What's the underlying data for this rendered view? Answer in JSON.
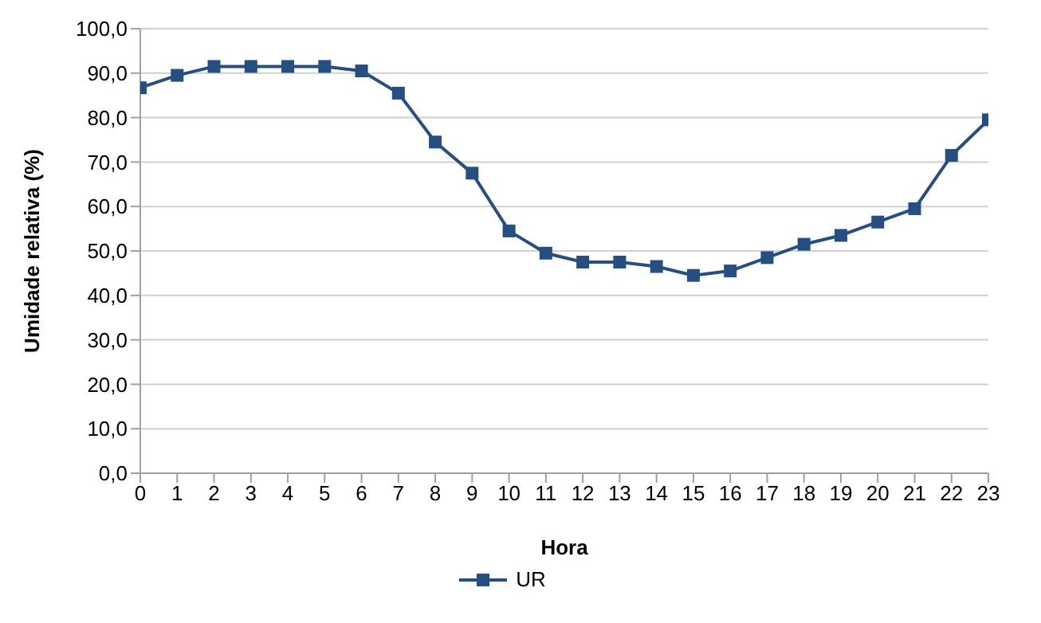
{
  "chart_data": {
    "type": "line",
    "xlabel": "Hora",
    "ylabel": "Umidade relativa (%)",
    "x": [
      0,
      1,
      2,
      3,
      4,
      5,
      6,
      7,
      8,
      9,
      10,
      11,
      12,
      13,
      14,
      15,
      16,
      17,
      18,
      19,
      20,
      21,
      22,
      23
    ],
    "series": [
      {
        "name": "UR",
        "color": "#254f80",
        "values": [
          86.7,
          89.5,
          91.5,
          91.5,
          91.5,
          91.5,
          90.5,
          85.5,
          74.5,
          67.5,
          54.5,
          49.5,
          47.5,
          47.5,
          46.5,
          44.5,
          45.5,
          48.5,
          51.5,
          53.5,
          56.5,
          59.5,
          71.5,
          79.5
        ]
      }
    ],
    "xlim": [
      0,
      23
    ],
    "xticks": [
      0,
      1,
      2,
      3,
      4,
      5,
      6,
      7,
      8,
      9,
      10,
      11,
      12,
      13,
      14,
      15,
      16,
      17,
      18,
      19,
      20,
      21,
      22,
      23
    ],
    "ylim": [
      0,
      100
    ],
    "yticks": [
      {
        "value": 0,
        "label": "0,0"
      },
      {
        "value": 10,
        "label": "10,0"
      },
      {
        "value": 20,
        "label": "20,0"
      },
      {
        "value": 30,
        "label": "30,0"
      },
      {
        "value": 40,
        "label": "40,0"
      },
      {
        "value": 50,
        "label": "50,0"
      },
      {
        "value": 60,
        "label": "60,0"
      },
      {
        "value": 70,
        "label": "70,0"
      },
      {
        "value": 80,
        "label": "80,0"
      },
      {
        "value": 90,
        "label": "90,0"
      },
      {
        "value": 100,
        "label": "100,0"
      }
    ],
    "grid": "y",
    "legend": "bottom",
    "marker": "square",
    "line_style": "solid"
  }
}
